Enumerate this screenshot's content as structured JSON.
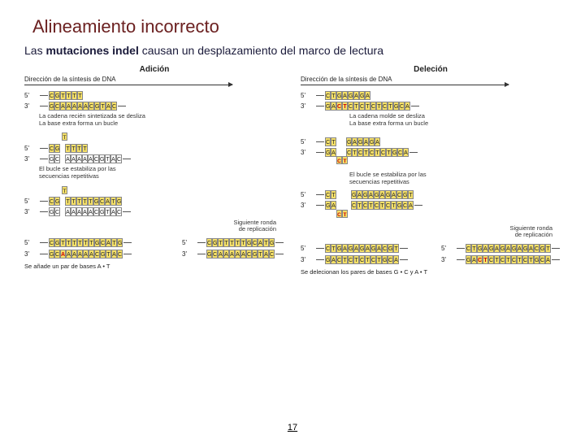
{
  "title": "Alineamiento incorrecto",
  "subtitle_pre": "Las ",
  "subtitle_bold": "mutaciones indel",
  "subtitle_post": " causan un desplazamiento del marco de lectura",
  "page_number": "17",
  "left": {
    "title": "Adición",
    "direction": "Dirección de la síntesis de DNA",
    "block1": {
      "top_label": "5'",
      "top_seq": "CGTTTT",
      "bot_label": "3'",
      "bot_seq": "GCAAAAACGTAC"
    },
    "caption1": "La cadena recién sintetizada se desliza\nLa base extra forma un bucle",
    "loop_base": "T",
    "block2": {
      "top_label": "5'",
      "top_seq_left": "CG",
      "top_seq_right": "TTTT",
      "bot_label": "3'",
      "bot_seq": "GC AAAAACGTAC"
    },
    "caption2": "El bucle se estabiliza por las\nsecuencias repetitivas",
    "block3": {
      "top_label": "5'",
      "top_seq_left": "CG",
      "top_seq_right": "TTTTTGCATG",
      "bot_label": "3'",
      "bot_seq": "GC AAAAACGTAC"
    },
    "caption3": "Siguiente ronda\nde replicación",
    "pair_left": {
      "top": "CGTTTTTTGCATG",
      "bot": "GCAAAAAACGTAC",
      "red_idx": [
        2
      ]
    },
    "pair_right": {
      "top": "CGTTTTTGCATG",
      "bot": "GCAAAAACGTAC"
    },
    "bottom_caption": "Se añade un par de bases A • T"
  },
  "right": {
    "title": "Deleción",
    "direction": "Dirección de la síntesis de DNA",
    "block1": {
      "top_label": "5'",
      "top_seq": "CTGAGAGA",
      "bot_label": "3'",
      "bot_seq": "GACTCTCTCTCTGCA",
      "bot_red": [
        2,
        3
      ]
    },
    "caption1": "La cadena molde se desliza\nLa base extra forma un bucle",
    "block2": {
      "top_label": "5'",
      "top_seq": "CT  GAGAGA",
      "bot_label": "3'",
      "bot_seq": "GA  CTCTCTCTGCA"
    },
    "loop_seq": "CT",
    "caption2": "El bucle se estabiliza por las\nsecuencias repetitivas",
    "block3": {
      "top_label": "5'",
      "top_seq": "CT   GAGAGAGACGT",
      "bot_label": "3'",
      "bot_seq": "GA   CTCTCTCTGCA"
    },
    "caption3": "Siguiente ronda\nde replicación",
    "pair_left": {
      "top": "CTGAGAGAGACGT",
      "bot": "GACTCTCTCTGCA"
    },
    "pair_right": {
      "top": "CTGAGAGAGAGACGT",
      "bot": "GACTCTCTCTCTGCA",
      "red_idx": [
        2,
        3
      ]
    },
    "bottom_caption": "Se delecionan los pares de bases G • C y A • T"
  },
  "colors": {
    "title": "#6b2020",
    "highlight": "#f5e068",
    "red": "#cc0000",
    "text": "#1a1a3a"
  }
}
